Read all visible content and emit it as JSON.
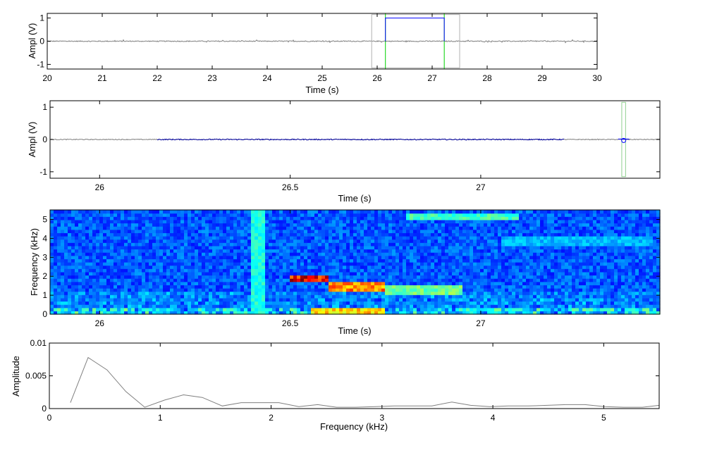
{
  "chart_data": [
    {
      "type": "line",
      "id": "overview",
      "xlabel": "Time (s)",
      "ylabel": "Ampl (V)",
      "xlim": [
        20,
        30
      ],
      "ylim": [
        -1.2,
        1.2
      ],
      "xticks": [
        "20",
        "21",
        "22",
        "23",
        "24",
        "25",
        "26",
        "27",
        "28",
        "29",
        "30"
      ],
      "yticks": [
        "1",
        "0",
        "-1"
      ],
      "grid": false,
      "series": [
        {
          "role": "waveform",
          "color": "#808080"
        },
        {
          "role": "selection-gate",
          "color": "#0000ff",
          "x": [
            26.15,
            26.15,
            27.22,
            27.22
          ],
          "y": [
            0,
            1,
            1,
            0
          ]
        }
      ],
      "markers": [
        {
          "role": "cursor",
          "color": "#00d000",
          "x": [
            26.15,
            27.22
          ]
        },
        {
          "role": "window",
          "color": "#b0b0b0",
          "x": [
            25.9,
            27.5
          ],
          "y": [
            -1.15,
            1.15
          ]
        }
      ]
    },
    {
      "type": "line",
      "id": "zoom",
      "xlabel": "Time (s)",
      "ylabel": "Ampl (V)",
      "xlim": [
        25.87,
        27.47
      ],
      "ylim": [
        -1.2,
        1.2
      ],
      "xticks": [
        "26",
        "26.5",
        "27"
      ],
      "yticks": [
        "1",
        "0",
        "-1"
      ],
      "grid": false,
      "series": [
        {
          "role": "waveform",
          "color": "#808080"
        },
        {
          "role": "selection",
          "color": "#0000a0",
          "x": [
            26.15,
            27.22
          ]
        }
      ],
      "markers": [
        {
          "role": "window",
          "color": "#90d090",
          "x": [
            27.37,
            27.38
          ],
          "y": [
            -1.15,
            1.15
          ]
        },
        {
          "role": "point",
          "color": "#0000ff",
          "x": 27.375,
          "y": -0.03
        }
      ]
    },
    {
      "type": "heatmap",
      "id": "spectrogram",
      "xlabel": "Time (s)",
      "ylabel": "Frequency (kHz)",
      "xlim": [
        25.87,
        27.47
      ],
      "ylim": [
        0,
        5.5
      ],
      "xticks": [
        "26",
        "26.5",
        "27"
      ],
      "yticks": [
        "5",
        "4",
        "3",
        "2",
        "1",
        "0"
      ],
      "colormap": "jet",
      "features": [
        {
          "t": [
            26.5,
            26.6
          ],
          "f": [
            1.7,
            2.1
          ],
          "level": 1.0
        },
        {
          "t": [
            26.6,
            26.75
          ],
          "f": [
            1.2,
            1.7
          ],
          "level": 0.85
        },
        {
          "t": [
            26.75,
            26.95
          ],
          "f": [
            1.0,
            1.5
          ],
          "level": 0.55
        },
        {
          "t": [
            26.55,
            26.75
          ],
          "f": [
            0.05,
            0.35
          ],
          "level": 0.75
        },
        {
          "t": [
            26.8,
            27.1
          ],
          "f": [
            4.9,
            5.3
          ],
          "level": 0.5
        },
        {
          "t": [
            27.05,
            27.45
          ],
          "f": [
            3.6,
            4.2
          ],
          "level": 0.35
        }
      ]
    },
    {
      "type": "line",
      "id": "spectrum",
      "xlabel": "Frequency (kHz)",
      "ylabel": "Amplitude",
      "xlim": [
        0,
        5.5
      ],
      "ylim": [
        0,
        0.01
      ],
      "xticks": [
        "0",
        "1",
        "2",
        "3",
        "4",
        "5"
      ],
      "yticks": [
        "0.01",
        "0.005",
        "0"
      ],
      "grid": false,
      "series": [
        {
          "role": "spectrum",
          "color": "#808080",
          "x": [
            0.19,
            0.35,
            0.52,
            0.69,
            0.86,
            1.04,
            1.21,
            1.38,
            1.56,
            1.73,
            1.9,
            2.07,
            2.25,
            2.42,
            2.59,
            2.76,
            2.94,
            3.11,
            3.28,
            3.45,
            3.63,
            3.8,
            3.97,
            4.14,
            4.32,
            4.49,
            4.66,
            4.83,
            5.01,
            5.18,
            5.35,
            5.5
          ],
          "y": [
            0.0009,
            0.0078,
            0.0059,
            0.0026,
            0.0002,
            0.0013,
            0.0021,
            0.0017,
            0.0004,
            0.0009,
            0.0009,
            0.0009,
            0.0003,
            0.0006,
            0.0002,
            0.0002,
            0.0003,
            0.0004,
            0.0004,
            0.0004,
            0.001,
            0.0005,
            0.0003,
            0.0004,
            0.0004,
            0.0005,
            0.0006,
            0.0006,
            0.0003,
            0.0002,
            0.0002,
            0.0005
          ]
        }
      ]
    }
  ]
}
